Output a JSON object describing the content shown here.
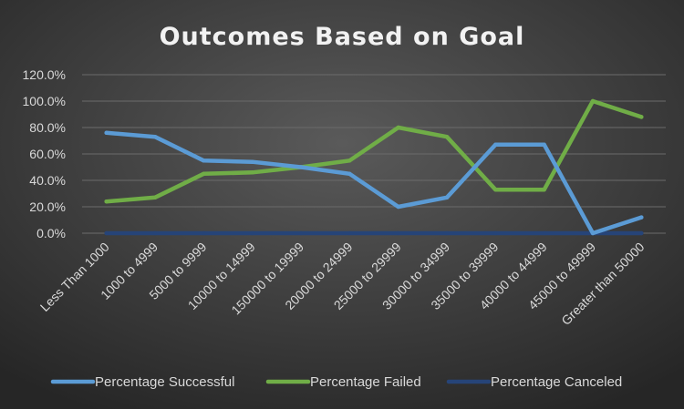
{
  "chart_data": {
    "type": "line",
    "title": "Outcomes Based on Goal",
    "xlabel": "",
    "ylabel": "",
    "categories": [
      "Less Than 1000",
      "1000 to 4999",
      "5000 to 9999",
      "10000 to 14999",
      "150000 to 19999",
      "20000 to 24999",
      "25000 to 29999",
      "30000 to 34999",
      "35000 to 39999",
      "40000 to 44999",
      "45000 to 49999",
      "Greater than 50000"
    ],
    "y_ticks": [
      "0.0%",
      "20.0%",
      "40.0%",
      "60.0%",
      "80.0%",
      "100.0%",
      "120.0%"
    ],
    "ylim": [
      0,
      120
    ],
    "grid": true,
    "legend_position": "bottom",
    "series": [
      {
        "name": "Percentage Successful",
        "color": "#5b9bd5",
        "values": [
          76,
          73,
          55,
          54,
          50,
          45,
          20,
          27,
          67,
          67,
          0,
          12
        ]
      },
      {
        "name": "Percentage Failed",
        "color": "#70ad47",
        "values": [
          24,
          27,
          45,
          46,
          50,
          55,
          80,
          73,
          33,
          33,
          100,
          88
        ]
      },
      {
        "name": "Percentage Canceled",
        "color": "#264478",
        "values": [
          0,
          0,
          0,
          0,
          0,
          0,
          0,
          0,
          0,
          0,
          0,
          0
        ]
      }
    ]
  },
  "colors": {
    "background_top": "#595959",
    "background_bottom": "#262626",
    "text": "#d9d9d9",
    "title": "#f2f2f2",
    "grid": "#6b6b6b"
  }
}
